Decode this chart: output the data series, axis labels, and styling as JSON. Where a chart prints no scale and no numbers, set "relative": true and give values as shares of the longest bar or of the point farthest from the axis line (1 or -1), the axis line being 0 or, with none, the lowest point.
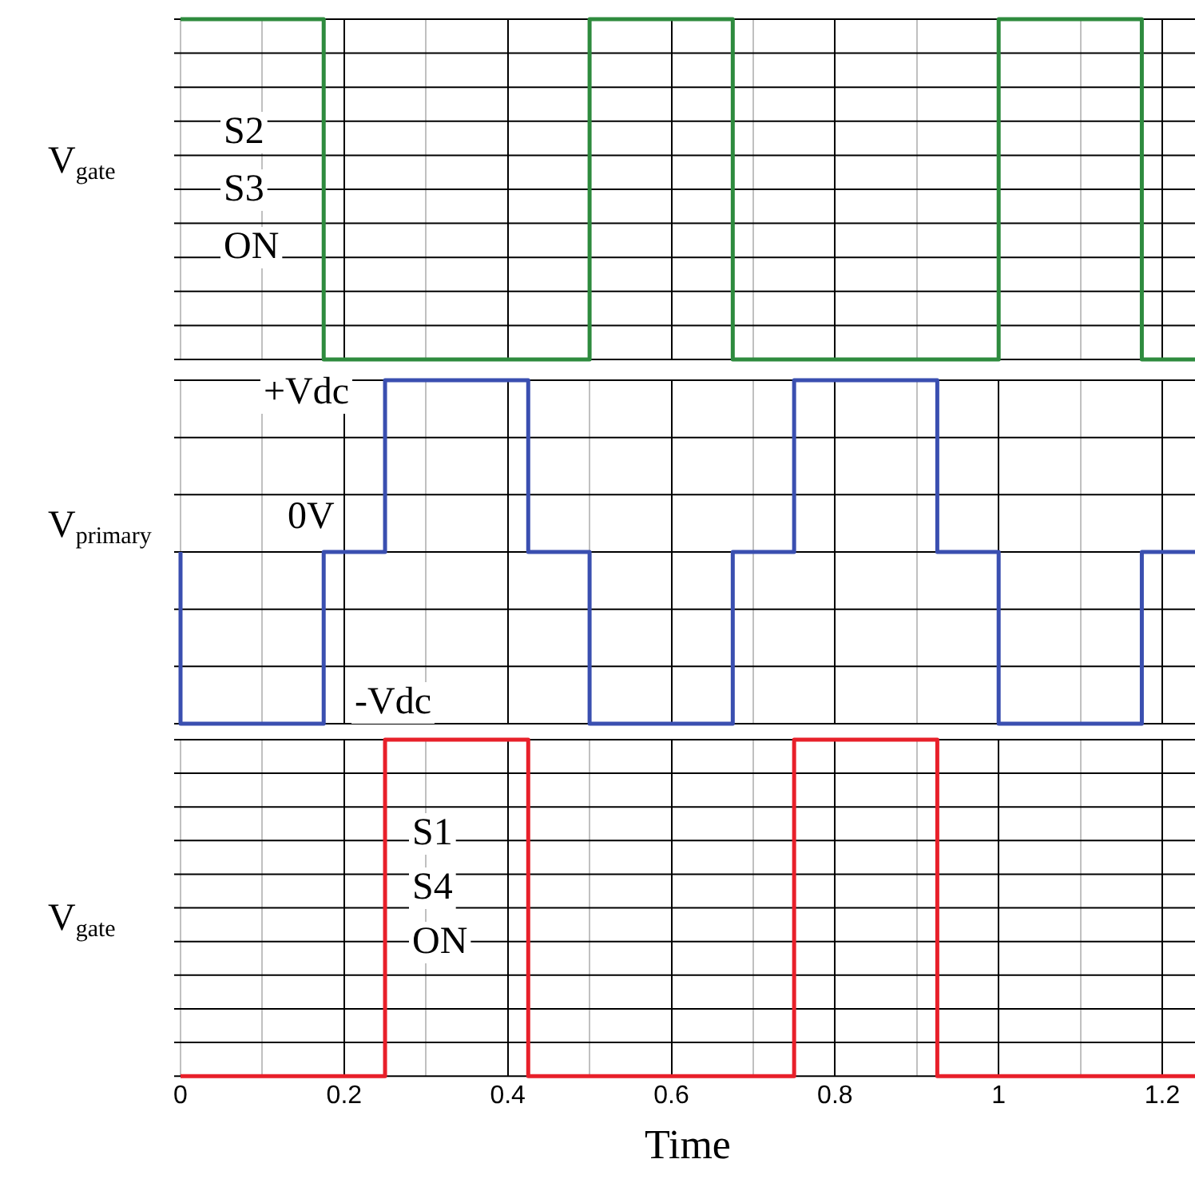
{
  "chart_data": [
    {
      "type": "step",
      "relative": true,
      "ylabel": "V$_{gate}$",
      "xlim": [
        0,
        1.24
      ],
      "xticks": [
        0,
        {
          "value": 0.1,
          "label": null
        },
        0.2,
        {
          "value": 0.3,
          "label": null
        },
        0.4,
        {
          "value": 0.5,
          "label": null
        },
        0.6,
        {
          "value": 0.7,
          "label": null
        },
        0.8,
        {
          "value": 0.9,
          "label": null
        },
        1,
        {
          "value": 1.1,
          "label": null
        },
        1.2
      ],
      "tick_labels": false,
      "grid": true,
      "legend": false,
      "annotations": [
        "S2",
        "S3",
        "ON"
      ],
      "series": [
        {
          "color": "#2e8b3e",
          "x": [
            0,
            0.175,
            0.5,
            0.675,
            1.0,
            1.175,
            1.24
          ],
          "values": [
            1,
            0,
            1,
            0,
            1,
            0,
            0
          ]
        }
      ]
    },
    {
      "type": "step",
      "relative": true,
      "ylabel": "V$_{primary}$",
      "xlim": [
        0,
        1.24
      ],
      "xticks": [
        0,
        {
          "value": 0.1,
          "label": null
        },
        0.2,
        {
          "value": 0.3,
          "label": null
        },
        0.4,
        {
          "value": 0.5,
          "label": null
        },
        0.6,
        {
          "value": 0.7,
          "label": null
        },
        0.8,
        {
          "value": 0.9,
          "label": null
        },
        1,
        {
          "value": 1.1,
          "label": null
        },
        1.2
      ],
      "tick_labels": false,
      "grid": true,
      "legend": false,
      "annotations": [
        "+Vdc",
        "0V",
        "-Vdc"
      ],
      "series": [
        {
          "color": "#3a4fb0",
          "x": [
            0,
            0,
            0.175,
            0.25,
            0.425,
            0.5,
            0.675,
            0.75,
            0.925,
            1.0,
            1.175,
            1.24
          ],
          "values": [
            0,
            -1,
            0,
            1,
            0,
            -1,
            0,
            1,
            0,
            -1,
            0,
            0
          ]
        }
      ]
    },
    {
      "type": "step",
      "relative": true,
      "ylabel": "V$_{gate}$",
      "xlabel": "Time",
      "xlim": [
        0,
        1.24
      ],
      "xticks": [
        0,
        {
          "value": 0.1,
          "label": null
        },
        0.2,
        {
          "value": 0.3,
          "label": null
        },
        0.4,
        {
          "value": 0.5,
          "label": null
        },
        0.6,
        {
          "value": 0.7,
          "label": null
        },
        0.8,
        {
          "value": 0.9,
          "label": null
        },
        1,
        {
          "value": 1.1,
          "label": null
        },
        1.2
      ],
      "tick_labels": "x",
      "grid": true,
      "legend": false,
      "annotations": [
        "S1",
        "S4",
        "ON"
      ],
      "series": [
        {
          "color": "#e8202a",
          "x": [
            0,
            0.25,
            0.425,
            0.75,
            0.925,
            1.24
          ],
          "values": [
            0,
            1,
            0,
            1,
            0,
            0
          ]
        }
      ]
    }
  ]
}
